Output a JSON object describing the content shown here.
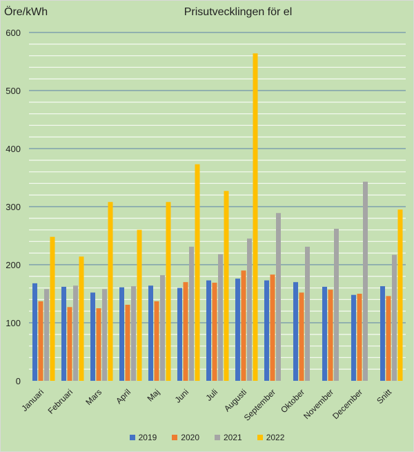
{
  "chart_data": {
    "type": "bar",
    "title": "Prisutvecklingen för el",
    "ylabel": "Öre/kWh",
    "xlabel": "",
    "ylim": [
      0,
      600
    ],
    "yticks": [
      0,
      100,
      200,
      300,
      400,
      500,
      600
    ],
    "minor_grid_step": 20,
    "grid": true,
    "legend_position": "bottom",
    "categories": [
      "Januari",
      "Februari",
      "Mars",
      "April",
      "Maj",
      "Juni",
      "Juli",
      "Augusti",
      "September",
      "Oktober",
      "November",
      "December",
      "Snitt"
    ],
    "series": [
      {
        "name": "2019",
        "color": "#4472c4",
        "values": [
          168,
          162,
          152,
          161,
          164,
          160,
          173,
          176,
          173,
          170,
          162,
          148,
          163
        ]
      },
      {
        "name": "2020",
        "color": "#ed7d31",
        "values": [
          137,
          127,
          125,
          131,
          137,
          170,
          169,
          190,
          183,
          152,
          157,
          150,
          146
        ]
      },
      {
        "name": "2021",
        "color": "#a5a5a5",
        "values": [
          158,
          164,
          158,
          163,
          182,
          231,
          218,
          245,
          289,
          231,
          262,
          343,
          217
        ]
      },
      {
        "name": "2022",
        "color": "#ffc000",
        "values": [
          248,
          214,
          308,
          260,
          308,
          373,
          327,
          564,
          null,
          null,
          null,
          null,
          295
        ]
      }
    ]
  }
}
